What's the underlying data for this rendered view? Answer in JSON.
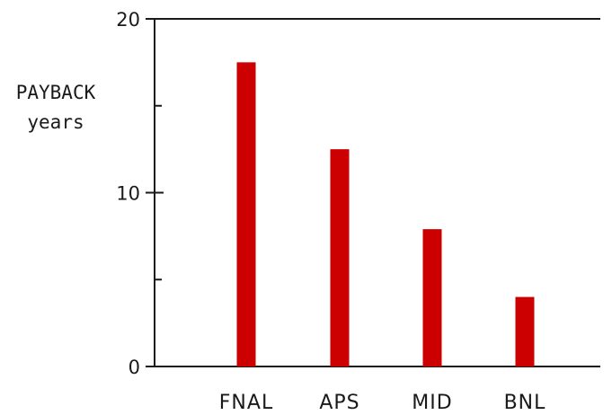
{
  "chart_data": {
    "type": "bar",
    "categories": [
      "FNAL",
      "APS",
      "MID",
      "BNL"
    ],
    "values": [
      17.5,
      12.5,
      7.9,
      4.0
    ],
    "ylabel_lines": [
      "PAYBACK",
      "years"
    ],
    "ylim": [
      0,
      20
    ],
    "yticks": [
      0,
      10,
      20
    ],
    "bar_color": "#cc0000",
    "grid": false,
    "legend": "none"
  }
}
